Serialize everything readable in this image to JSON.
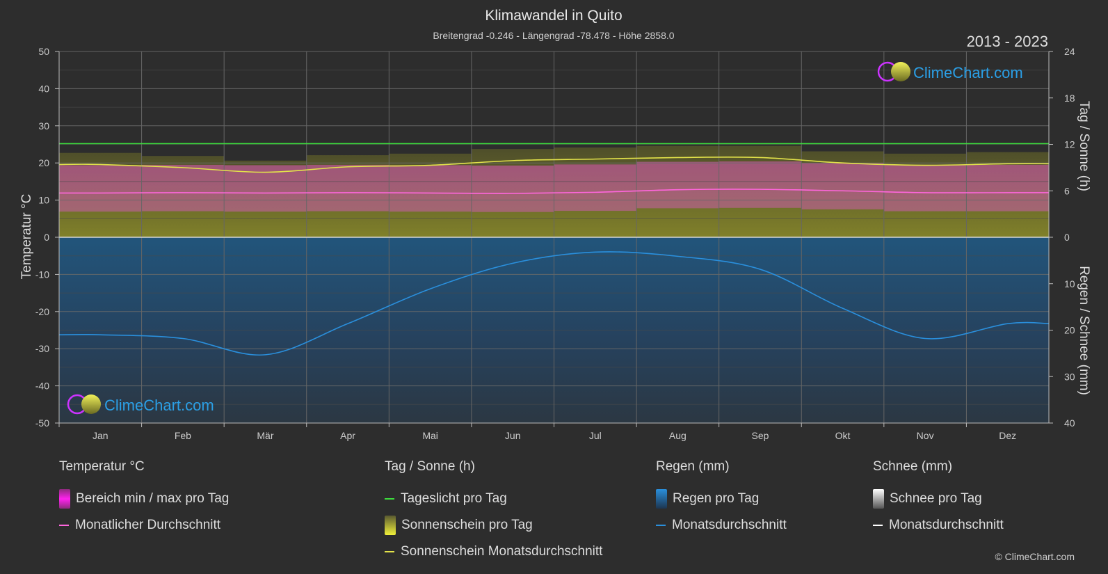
{
  "header": {
    "title": "Klimawandel in Quito",
    "subtitle": "Breitengrad -0.246 - Längengrad -78.478 - Höhe 2858.0",
    "period": "2013 - 2023"
  },
  "logo": {
    "text": "ClimeChart.com"
  },
  "copyright": "© ClimeChart.com",
  "colors": {
    "background": "#2d2d2d",
    "daylight": "#3ddc3d",
    "sunshine": "#e3e34a",
    "temp_avg": "#ff66dd",
    "temp_range": "#d94fb8",
    "rain": "#2a8fdc",
    "snow": "#ffffff"
  },
  "chart_data": {
    "type": "line",
    "categories": [
      "Jan",
      "Feb",
      "Mär",
      "Apr",
      "Mai",
      "Jun",
      "Jul",
      "Aug",
      "Sep",
      "Okt",
      "Nov",
      "Dez"
    ],
    "left_axis": {
      "label": "Temperatur °C",
      "ylim": [
        -50,
        50
      ],
      "ticks": [
        "50",
        "40",
        "30",
        "20",
        "10",
        "0",
        "-10",
        "-20",
        "-30",
        "-40",
        "-50"
      ]
    },
    "right_axis_top": {
      "label": "Tag / Sonne (h)",
      "ylim": [
        0,
        24
      ],
      "ticks": [
        "24",
        "18",
        "12",
        "6",
        "0"
      ]
    },
    "right_axis_bottom": {
      "label": "Regen / Schnee (mm)",
      "ylim": [
        0,
        40
      ],
      "ticks": [
        "10",
        "20",
        "30",
        "40"
      ]
    },
    "series": [
      {
        "name": "Tageslicht pro Tag",
        "axis": "sun_h",
        "values": [
          12.1,
          12.1,
          12.1,
          12.1,
          12.1,
          12.1,
          12.1,
          12.1,
          12.1,
          12.1,
          12.1,
          12.1
        ]
      },
      {
        "name": "Sonnenschein Monatsdurchschnitt",
        "axis": "sun_h",
        "values": [
          9.4,
          9.0,
          8.4,
          9.1,
          9.3,
          9.9,
          10.1,
          10.3,
          10.3,
          9.6,
          9.3,
          9.5
        ]
      },
      {
        "name": "Monatlicher Durchschnitt",
        "axis": "temp_c",
        "values": [
          11.9,
          12.0,
          11.9,
          12.0,
          11.9,
          11.8,
          12.1,
          12.8,
          12.9,
          12.5,
          12.0,
          12.0
        ]
      },
      {
        "name": "Monatsdurchschnitt (Regen)",
        "axis": "rain_mm",
        "values": [
          21.0,
          21.8,
          25.3,
          18.6,
          11.1,
          5.6,
          3.2,
          4.1,
          6.9,
          15.3,
          21.8,
          18.6
        ]
      }
    ],
    "grid": true,
    "legend_position": "bottom"
  },
  "legend": {
    "temperature": {
      "heading": "Temperatur °C",
      "range": "Bereich min / max pro Tag",
      "avg": "Monatlicher Durchschnitt"
    },
    "sun": {
      "heading": "Tag / Sonne (h)",
      "daylight": "Tageslicht pro Tag",
      "sunshine": "Sonnenschein pro Tag",
      "sunshine_avg": "Sonnenschein Monatsdurchschnitt"
    },
    "rain": {
      "heading": "Regen (mm)",
      "per_day": "Regen pro Tag",
      "avg": "Monatsdurchschnitt"
    },
    "snow": {
      "heading": "Schnee (mm)",
      "per_day": "Schnee pro Tag",
      "avg": "Monatsdurchschnitt"
    }
  }
}
